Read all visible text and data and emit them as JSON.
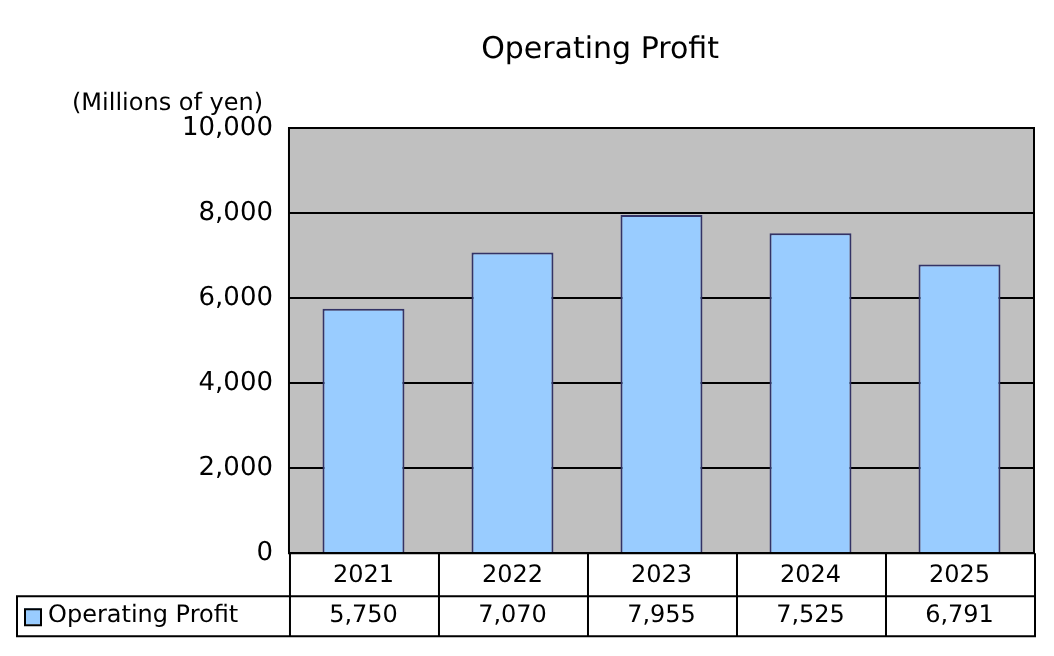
{
  "chart_data": {
    "type": "bar",
    "title": "Operating Profit",
    "ylabel": "(Millions of yen)",
    "categories": [
      "2021",
      "2022",
      "2023",
      "2024",
      "2025"
    ],
    "series": [
      {
        "name": "Operating Profit",
        "color": "#99ccff",
        "values": [
          5750,
          7070,
          7955,
          7525,
          6791
        ],
        "value_labels": [
          "5,750",
          "7,070",
          "7,955",
          "7,525",
          "6,791"
        ]
      }
    ],
    "ylim": [
      0,
      10000
    ],
    "yticks": [
      0,
      {
        "value": 2000,
        "label": "2,000"
      },
      {
        "value": 4000,
        "label": "4,000"
      },
      {
        "value": 6000,
        "label": "6,000"
      },
      {
        "value": 8000,
        "label": "8,000"
      },
      {
        "value": 10000,
        "label": "10,000"
      }
    ],
    "grid": "y",
    "legend": "bottom"
  }
}
